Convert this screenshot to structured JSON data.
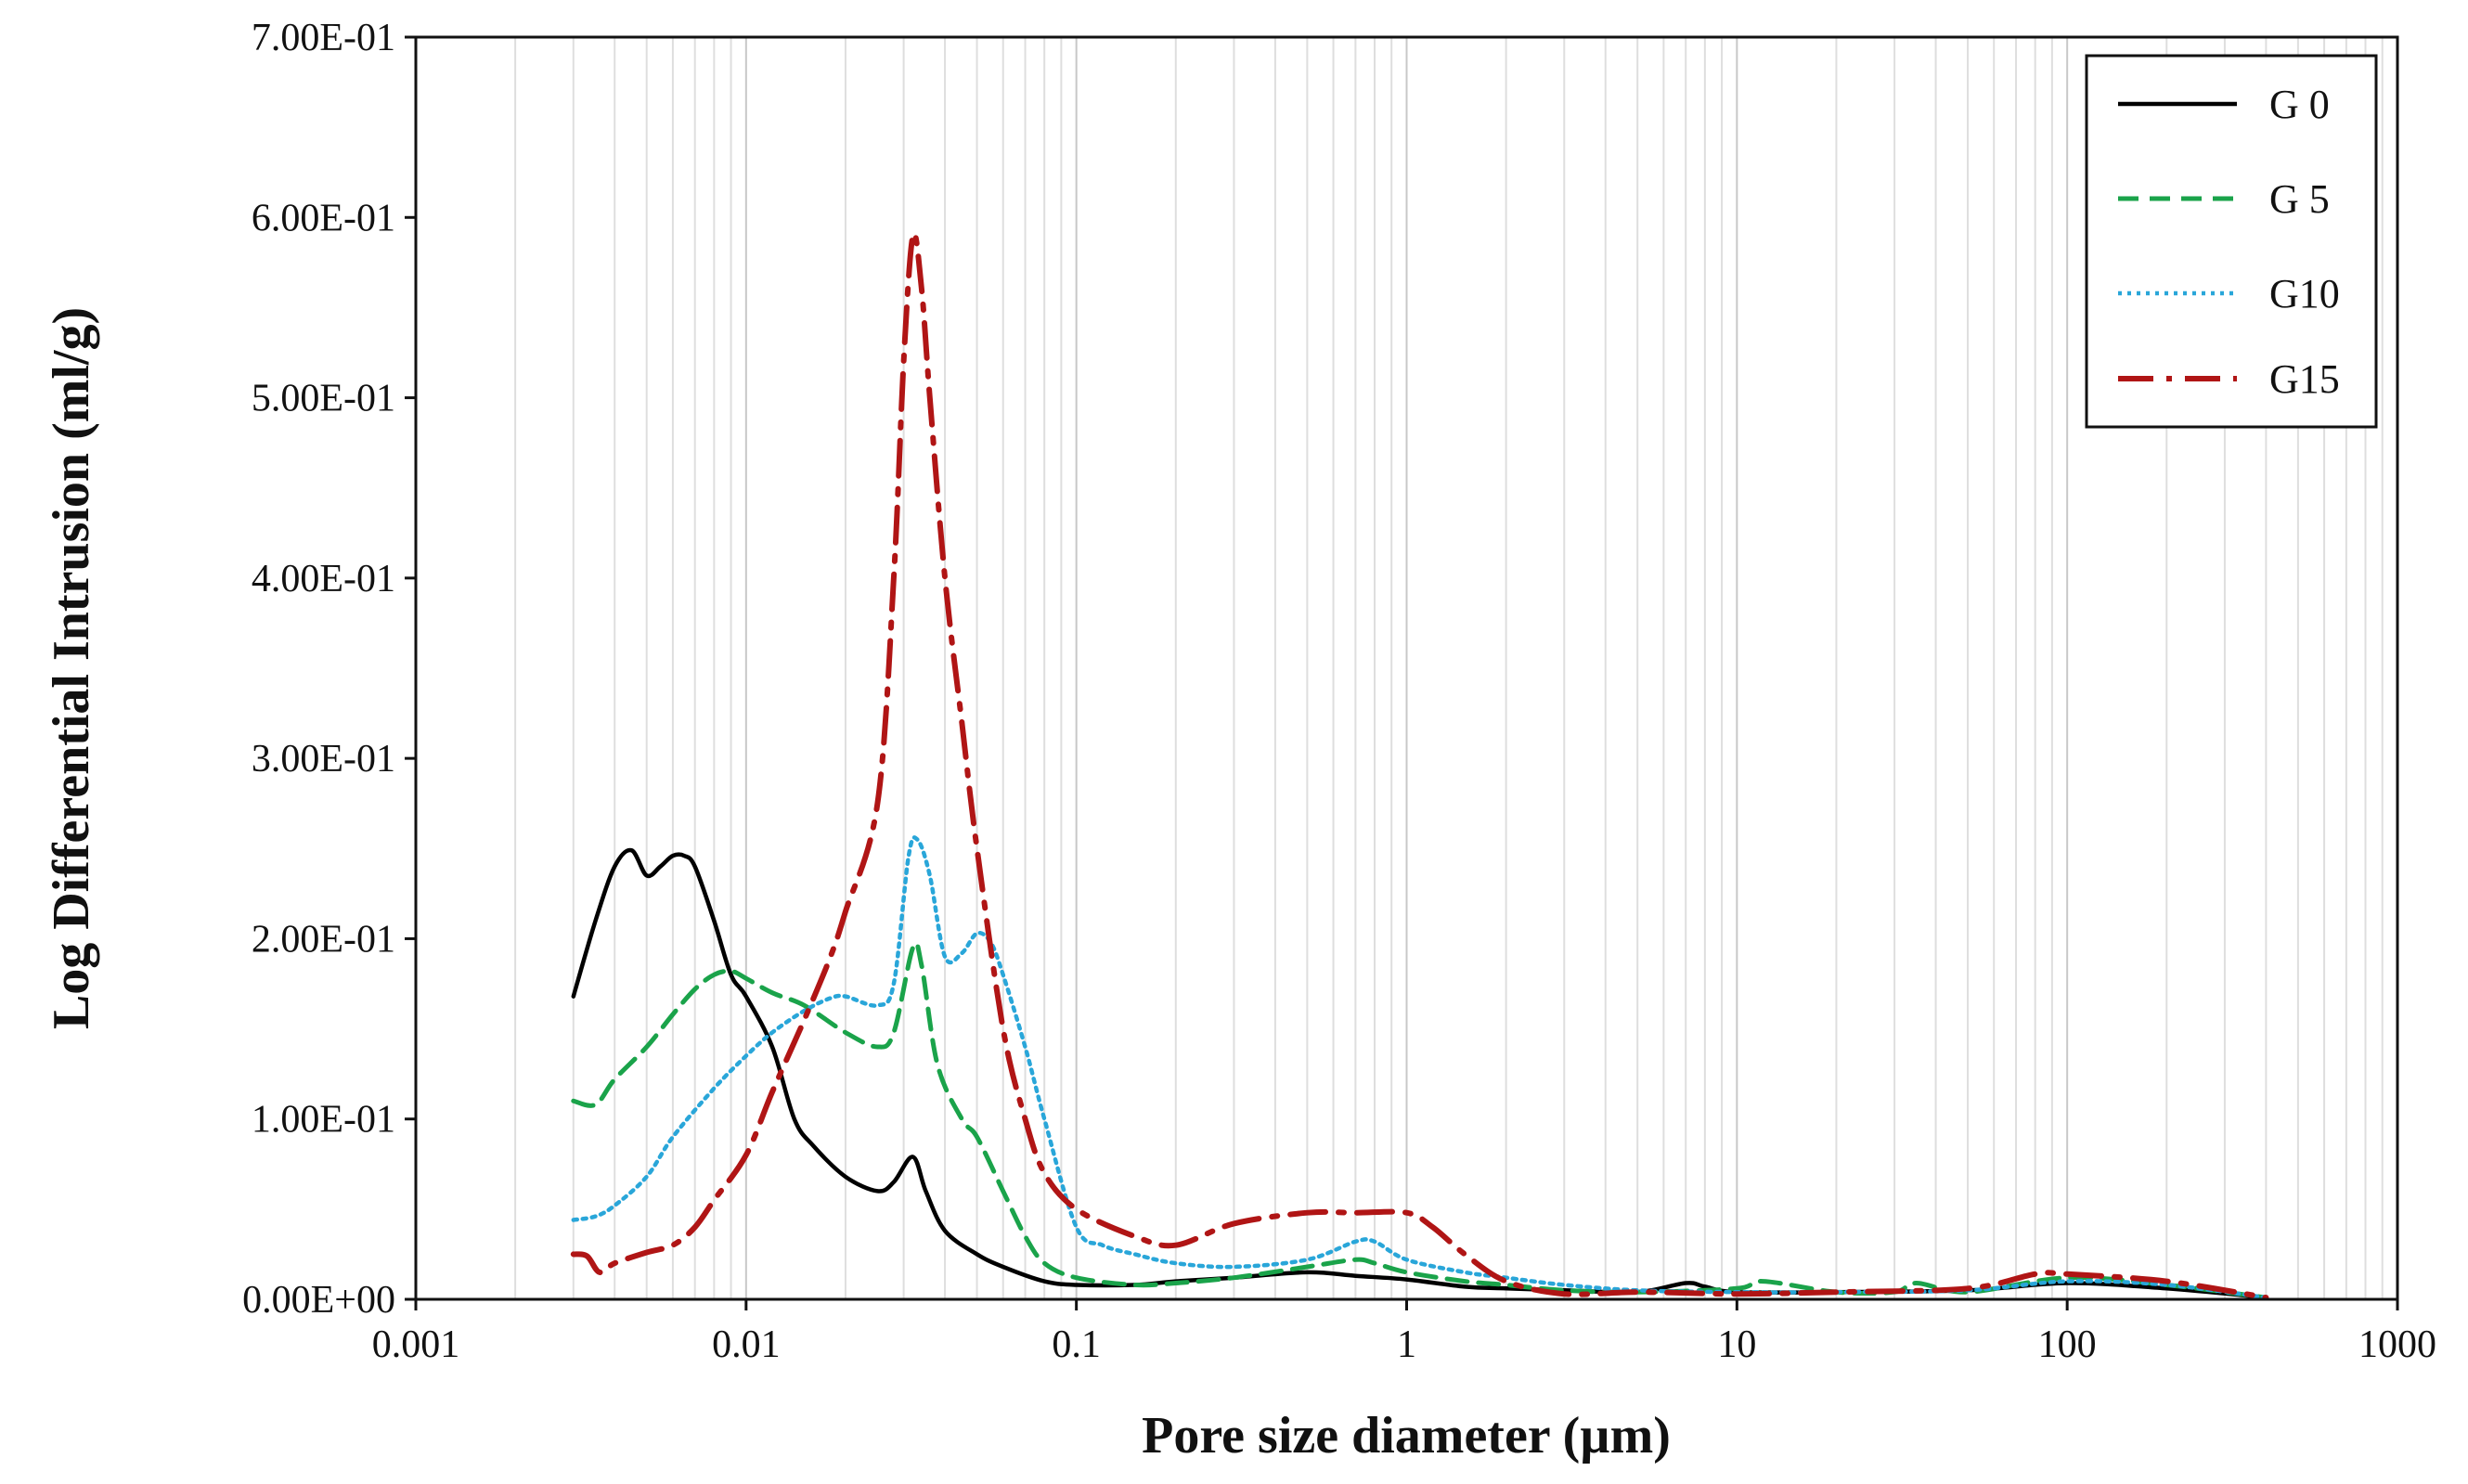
{
  "chart_data": {
    "type": "line",
    "title": "",
    "xlabel": "Pore size diameter (µm)",
    "ylabel": "Log Differential Intrusion (ml/g)",
    "x_scale": "log",
    "xlim": [
      0.001,
      1000
    ],
    "ylim": [
      0,
      0.7
    ],
    "x_ticks": [
      0.001,
      0.01,
      0.1,
      1,
      10,
      100,
      1000
    ],
    "x_tick_labels": [
      "0.001",
      "0.01",
      "0.1",
      "1",
      "10",
      "100",
      "1000"
    ],
    "y_ticks": [
      0,
      0.1,
      0.2,
      0.3,
      0.4,
      0.5,
      0.6,
      0.7
    ],
    "y_tick_labels": [
      "0.00E+00",
      "1.00E-01",
      "2.00E-01",
      "3.00E-01",
      "4.00E-01",
      "5.00E-01",
      "6.00E-01",
      "7.00E-01"
    ],
    "grid": "vertical minor log gridlines",
    "legend_position": "top-right",
    "series": [
      {
        "name": "G 0",
        "color": "#000000",
        "dash": "solid",
        "x": [
          0.003,
          0.0035,
          0.004,
          0.0045,
          0.005,
          0.0055,
          0.006,
          0.0065,
          0.007,
          0.008,
          0.009,
          0.01,
          0.012,
          0.014,
          0.016,
          0.02,
          0.025,
          0.028,
          0.032,
          0.035,
          0.04,
          0.05,
          0.06,
          0.08,
          0.1,
          0.15,
          0.2,
          0.3,
          0.5,
          0.7,
          1,
          1.5,
          2,
          3,
          5,
          7,
          8,
          10,
          20,
          50,
          100,
          200,
          400
        ],
        "y": [
          0.168,
          0.21,
          0.24,
          0.249,
          0.235,
          0.24,
          0.246,
          0.246,
          0.24,
          0.21,
          0.18,
          0.168,
          0.14,
          0.1,
          0.085,
          0.068,
          0.06,
          0.065,
          0.079,
          0.06,
          0.038,
          0.025,
          0.018,
          0.01,
          0.008,
          0.008,
          0.01,
          0.012,
          0.015,
          0.013,
          0.011,
          0.007,
          0.006,
          0.005,
          0.004,
          0.009,
          0.007,
          0.004,
          0.004,
          0.005,
          0.009,
          0.006,
          0.001
        ]
      },
      {
        "name": "G 5",
        "color": "#1aa34a",
        "dash": "dashed",
        "x": [
          0.003,
          0.0035,
          0.004,
          0.005,
          0.006,
          0.007,
          0.008,
          0.009,
          0.01,
          0.012,
          0.015,
          0.02,
          0.025,
          0.028,
          0.032,
          0.034,
          0.038,
          0.045,
          0.05,
          0.06,
          0.07,
          0.08,
          0.1,
          0.15,
          0.2,
          0.3,
          0.5,
          0.7,
          0.8,
          1,
          1.5,
          2,
          3,
          5,
          10,
          12,
          20,
          30,
          35,
          50,
          100,
          200,
          400
        ],
        "y": [
          0.11,
          0.108,
          0.122,
          0.14,
          0.158,
          0.172,
          0.18,
          0.182,
          0.178,
          0.17,
          0.163,
          0.148,
          0.14,
          0.148,
          0.195,
          0.185,
          0.13,
          0.1,
          0.09,
          0.06,
          0.035,
          0.02,
          0.012,
          0.008,
          0.009,
          0.012,
          0.018,
          0.022,
          0.02,
          0.015,
          0.01,
          0.008,
          0.005,
          0.004,
          0.006,
          0.01,
          0.004,
          0.004,
          0.009,
          0.004,
          0.012,
          0.008,
          0.001
        ]
      },
      {
        "name": "G10",
        "color": "#29a6d9",
        "dash": "dotted",
        "x": [
          0.003,
          0.0035,
          0.004,
          0.005,
          0.006,
          0.008,
          0.01,
          0.012,
          0.015,
          0.018,
          0.02,
          0.025,
          0.028,
          0.031,
          0.033,
          0.036,
          0.04,
          0.045,
          0.05,
          0.055,
          0.06,
          0.07,
          0.08,
          0.1,
          0.12,
          0.15,
          0.2,
          0.3,
          0.5,
          0.7,
          0.8,
          1,
          1.5,
          2,
          3,
          5,
          10,
          20,
          50,
          100,
          200,
          400
        ],
        "y": [
          0.044,
          0.046,
          0.052,
          0.068,
          0.09,
          0.117,
          0.135,
          0.148,
          0.16,
          0.167,
          0.168,
          0.163,
          0.175,
          0.245,
          0.255,
          0.235,
          0.19,
          0.192,
          0.203,
          0.198,
          0.18,
          0.14,
          0.1,
          0.04,
          0.03,
          0.025,
          0.02,
          0.018,
          0.022,
          0.032,
          0.032,
          0.022,
          0.015,
          0.012,
          0.008,
          0.005,
          0.004,
          0.004,
          0.005,
          0.01,
          0.008,
          0.001
        ]
      },
      {
        "name": "G15",
        "color": "#b01515",
        "dash": "dash-dot",
        "x": [
          0.003,
          0.0033,
          0.0036,
          0.004,
          0.005,
          0.006,
          0.007,
          0.008,
          0.01,
          0.012,
          0.015,
          0.018,
          0.02,
          0.025,
          0.028,
          0.03,
          0.032,
          0.034,
          0.036,
          0.04,
          0.045,
          0.05,
          0.06,
          0.07,
          0.08,
          0.1,
          0.15,
          0.2,
          0.3,
          0.5,
          0.7,
          1,
          1.2,
          1.5,
          2,
          3,
          5,
          10,
          20,
          50,
          80,
          100,
          200,
          400
        ],
        "y": [
          0.025,
          0.024,
          0.015,
          0.02,
          0.026,
          0.03,
          0.04,
          0.055,
          0.08,
          0.115,
          0.155,
          0.19,
          0.215,
          0.275,
          0.4,
          0.52,
          0.59,
          0.56,
          0.5,
          0.4,
          0.32,
          0.25,
          0.15,
          0.1,
          0.07,
          0.05,
          0.035,
          0.03,
          0.042,
          0.048,
          0.048,
          0.048,
          0.04,
          0.025,
          0.01,
          0.003,
          0.004,
          0.003,
          0.004,
          0.006,
          0.014,
          0.014,
          0.01,
          0.001
        ]
      }
    ]
  }
}
